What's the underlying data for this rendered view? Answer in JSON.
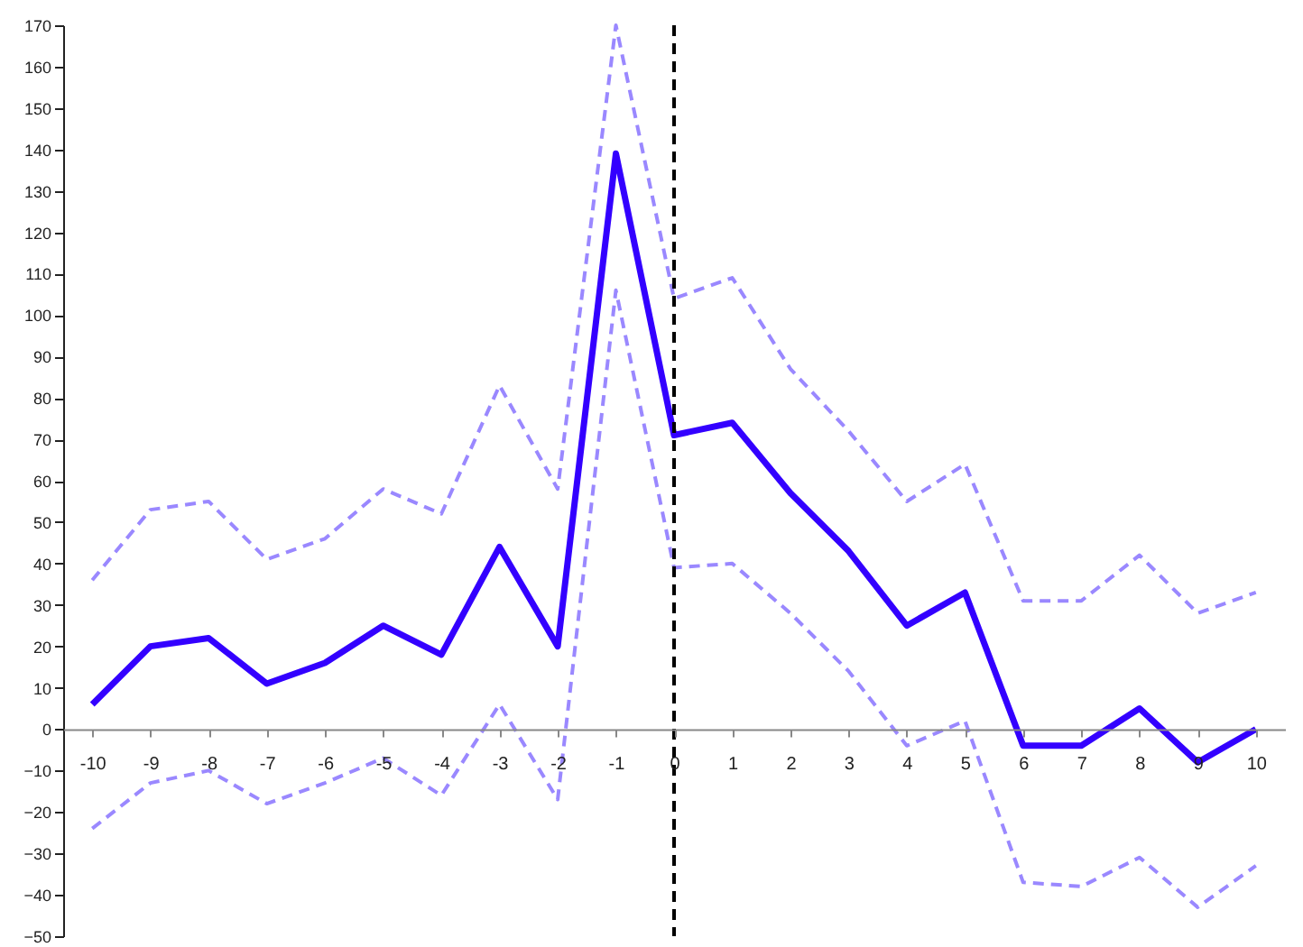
{
  "chart_data": {
    "type": "line",
    "categories": [
      "-10",
      "-9",
      "-8",
      "-7",
      "-6",
      "-5",
      "-4",
      "-3",
      "-2",
      "-1",
      "0",
      "1",
      "2",
      "3",
      "4",
      "5",
      "6",
      "7",
      "8",
      "9",
      "10"
    ],
    "series": [
      {
        "color": "#9a88ff",
        "line_style": "dashed",
        "values": [
          36,
          53,
          55,
          41,
          46,
          58,
          52,
          83,
          58,
          170,
          104,
          109,
          87,
          72,
          55,
          64,
          31,
          31,
          42,
          28,
          33
        ]
      },
      {
        "color": "#9a88ff",
        "line_style": "dashed",
        "values": [
          -24,
          -13,
          -10,
          -18,
          -13,
          -7,
          -16,
          6,
          -17,
          106,
          39,
          40,
          28,
          14,
          -4,
          2,
          -37,
          -38,
          -31,
          -43,
          -33
        ]
      },
      {
        "color": "#3300ff",
        "line_style": "solid",
        "values": [
          6,
          20,
          22,
          11,
          16,
          25,
          18,
          44,
          20,
          139,
          71,
          74,
          57,
          43,
          25,
          33,
          -4,
          -4,
          5,
          -8,
          0
        ]
      }
    ],
    "ylim": [
      -50,
      170
    ],
    "yticks": [
      -50,
      -40,
      -30,
      -20,
      -10,
      0,
      10,
      20,
      30,
      40,
      50,
      60,
      70,
      80,
      90,
      100,
      110,
      120,
      130,
      140,
      150,
      160,
      170
    ],
    "ref_lines": [
      {
        "axis": "x",
        "value": "0",
        "color": "#000000",
        "line_style": "dashed"
      }
    ],
    "grid": false,
    "marker": "none"
  }
}
